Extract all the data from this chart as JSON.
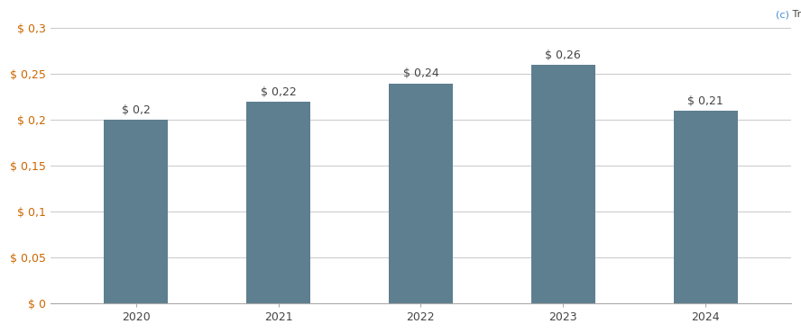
{
  "categories": [
    "2020",
    "2021",
    "2022",
    "2023",
    "2024"
  ],
  "values": [
    0.2,
    0.22,
    0.24,
    0.26,
    0.21
  ],
  "bar_labels": [
    "$ 0,2",
    "$ 0,22",
    "$ 0,24",
    "$ 0,26",
    "$ 0,21"
  ],
  "bar_color": "#5d7f90",
  "ylim": [
    0,
    0.32
  ],
  "yticks": [
    0,
    0.05,
    0.1,
    0.15,
    0.2,
    0.25,
    0.3
  ],
  "ytick_labels": [
    "$ 0",
    "$ 0,05",
    "$ 0,1",
    "$ 0,15",
    "$ 0,2",
    "$ 0,25",
    "$ 0,3"
  ],
  "background_color": "#ffffff",
  "grid_color": "#cccccc",
  "ytick_color": "#cc6600",
  "xtick_color": "#444444",
  "bar_label_color": "#444444",
  "watermark_c_color": "#4488cc",
  "watermark_rest_color": "#444444",
  "bar_label_fontsize": 9,
  "tick_fontsize": 9,
  "bar_width": 0.45
}
